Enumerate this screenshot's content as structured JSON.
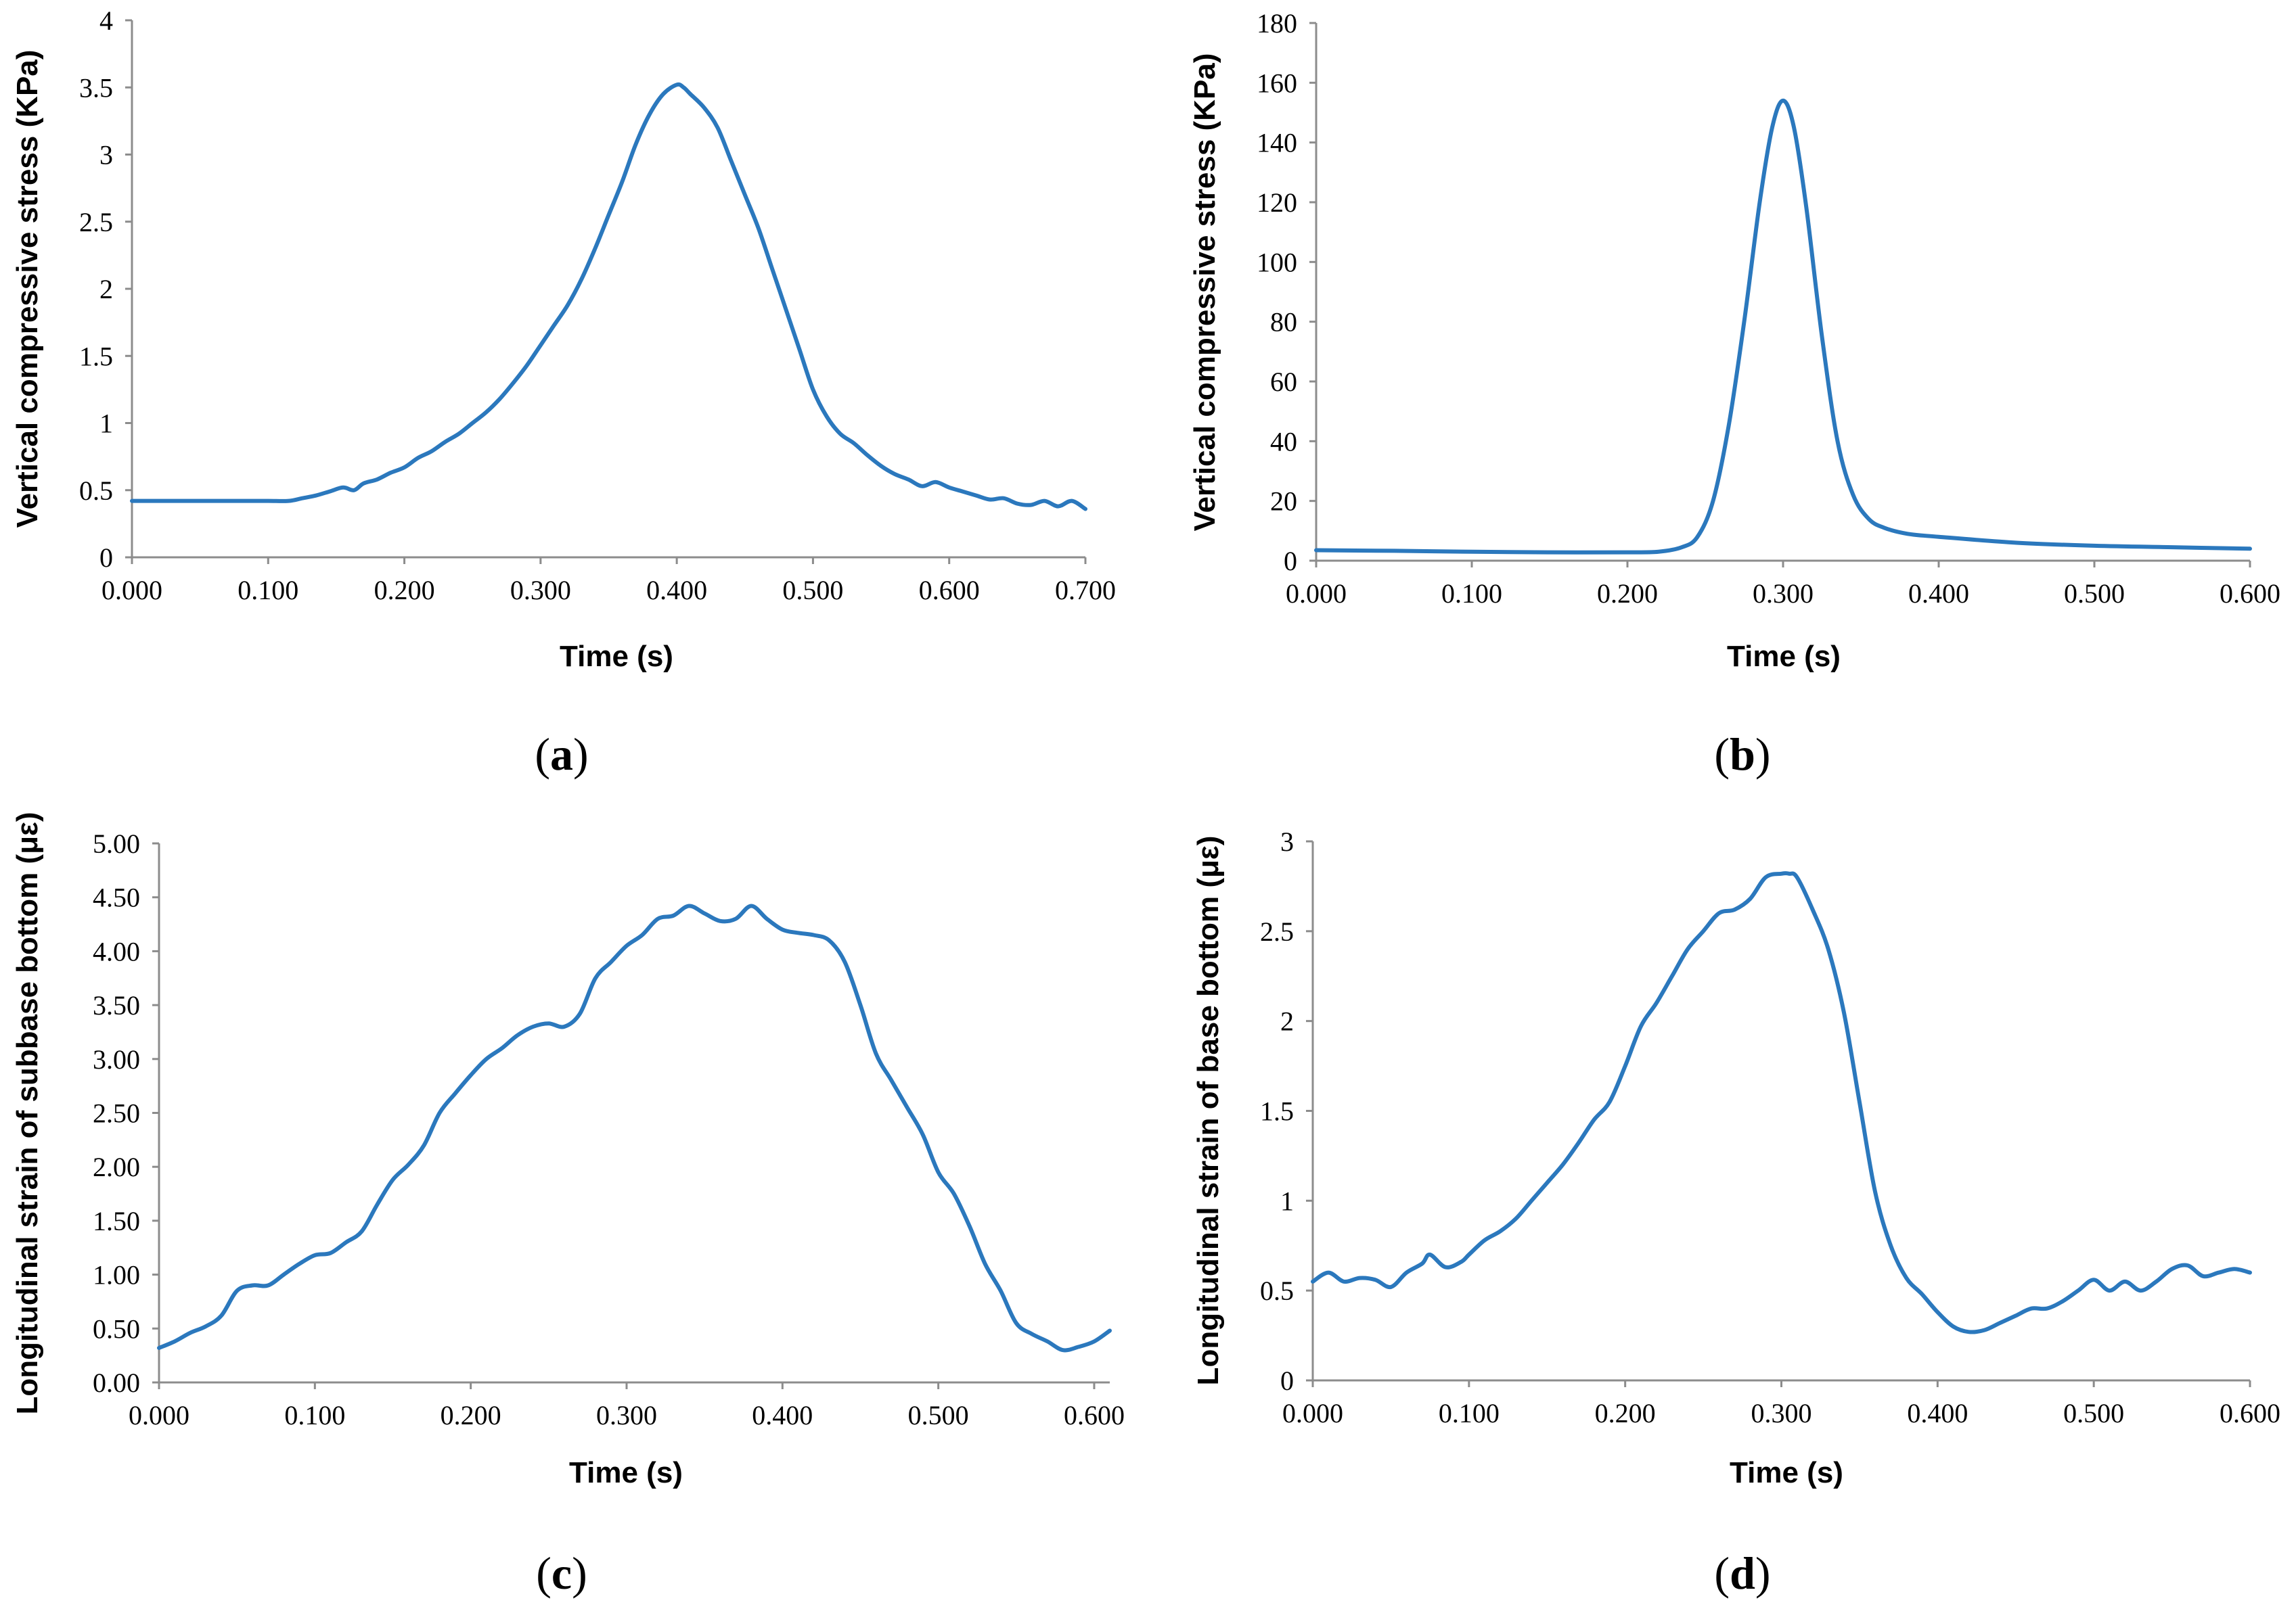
{
  "colors": {
    "series": "#2b78bd",
    "axis": "#8c8c8c",
    "text": "#000000"
  },
  "chart_data": [
    {
      "id": "a",
      "type": "line",
      "caption_letter": "a",
      "xlabel": "Time (s)",
      "ylabel": "Vertical compressive stress (KPa)",
      "xlim": [
        0,
        0.7
      ],
      "ylim": [
        0,
        4
      ],
      "x_ticks": [
        "0.000",
        "0.100",
        "0.200",
        "0.300",
        "0.400",
        "0.500",
        "0.600",
        "0.700"
      ],
      "y_ticks": [
        "0",
        "0.5",
        "1",
        "1.5",
        "2",
        "2.5",
        "3",
        "3.5",
        "4"
      ],
      "series": [
        {
          "name": "Vertical compressive stress",
          "x": [
            0,
            0.02,
            0.05,
            0.08,
            0.1,
            0.115,
            0.125,
            0.135,
            0.145,
            0.155,
            0.163,
            0.17,
            0.18,
            0.19,
            0.2,
            0.21,
            0.22,
            0.23,
            0.24,
            0.25,
            0.26,
            0.27,
            0.28,
            0.29,
            0.3,
            0.31,
            0.32,
            0.33,
            0.34,
            0.35,
            0.36,
            0.37,
            0.38,
            0.39,
            0.4,
            0.405,
            0.41,
            0.42,
            0.43,
            0.44,
            0.45,
            0.46,
            0.47,
            0.48,
            0.49,
            0.5,
            0.51,
            0.52,
            0.53,
            0.54,
            0.55,
            0.56,
            0.57,
            0.58,
            0.59,
            0.6,
            0.61,
            0.62,
            0.63,
            0.64,
            0.65,
            0.66,
            0.67,
            0.68,
            0.69,
            0.7
          ],
          "y": [
            0.42,
            0.42,
            0.42,
            0.42,
            0.42,
            0.42,
            0.44,
            0.46,
            0.49,
            0.52,
            0.5,
            0.55,
            0.58,
            0.63,
            0.67,
            0.74,
            0.79,
            0.86,
            0.92,
            1.0,
            1.08,
            1.18,
            1.3,
            1.43,
            1.58,
            1.73,
            1.88,
            2.07,
            2.3,
            2.55,
            2.8,
            3.08,
            3.3,
            3.45,
            3.52,
            3.5,
            3.45,
            3.35,
            3.2,
            2.95,
            2.7,
            2.45,
            2.15,
            1.85,
            1.55,
            1.25,
            1.05,
            0.92,
            0.85,
            0.76,
            0.68,
            0.62,
            0.58,
            0.53,
            0.56,
            0.52,
            0.49,
            0.46,
            0.43,
            0.44,
            0.4,
            0.39,
            0.42,
            0.38,
            0.42,
            0.36
          ]
        }
      ]
    },
    {
      "id": "b",
      "type": "line",
      "caption_letter": "b",
      "xlabel": "Time (s)",
      "ylabel": "Vertical compressive stress (KPa)",
      "xlim": [
        0,
        0.6
      ],
      "ylim": [
        0,
        180
      ],
      "x_ticks": [
        "0.000",
        "0.100",
        "0.200",
        "0.300",
        "0.400",
        "0.500",
        "0.600"
      ],
      "y_ticks": [
        "0",
        "20",
        "40",
        "60",
        "80",
        "100",
        "120",
        "140",
        "160",
        "180"
      ],
      "series": [
        {
          "name": "Vertical compressive stress",
          "x": [
            0,
            0.05,
            0.1,
            0.15,
            0.2,
            0.22,
            0.235,
            0.245,
            0.255,
            0.265,
            0.275,
            0.285,
            0.293,
            0.3,
            0.307,
            0.315,
            0.325,
            0.335,
            0.345,
            0.355,
            0.365,
            0.38,
            0.4,
            0.45,
            0.5,
            0.55,
            0.6
          ],
          "y": [
            3.5,
            3.3,
            3.0,
            2.8,
            2.8,
            3.0,
            4.5,
            8,
            20,
            45,
            80,
            120,
            145,
            154,
            145,
            118,
            75,
            40,
            22,
            14,
            11,
            9,
            8,
            6,
            5,
            4.5,
            4
          ]
        }
      ]
    },
    {
      "id": "c",
      "type": "line",
      "caption_letter": "c",
      "xlabel": "Time (s)",
      "ylabel": "Longitudinal strain of subbase bottom (με)",
      "xlim": [
        0,
        0.61
      ],
      "x_tick_values": [
        0,
        0.1,
        0.2,
        0.3,
        0.4,
        0.5,
        0.6
      ],
      "ylim": [
        0,
        5
      ],
      "x_ticks": [
        "0.000",
        "0.100",
        "0.200",
        "0.300",
        "0.400",
        "0.500",
        "0.600"
      ],
      "y_ticks": [
        "0.00",
        "0.50",
        "1.00",
        "1.50",
        "2.00",
        "2.50",
        "3.00",
        "3.50",
        "4.00",
        "4.50",
        "5.00"
      ],
      "series": [
        {
          "name": "Longitudinal strain of subbase bottom",
          "x": [
            0,
            0.01,
            0.02,
            0.03,
            0.04,
            0.05,
            0.06,
            0.07,
            0.08,
            0.09,
            0.1,
            0.11,
            0.12,
            0.13,
            0.14,
            0.15,
            0.16,
            0.17,
            0.18,
            0.19,
            0.2,
            0.21,
            0.22,
            0.23,
            0.24,
            0.25,
            0.26,
            0.27,
            0.28,
            0.29,
            0.3,
            0.31,
            0.32,
            0.33,
            0.34,
            0.35,
            0.36,
            0.37,
            0.38,
            0.39,
            0.4,
            0.41,
            0.42,
            0.43,
            0.44,
            0.45,
            0.46,
            0.47,
            0.48,
            0.49,
            0.5,
            0.51,
            0.52,
            0.53,
            0.54,
            0.55,
            0.56,
            0.57,
            0.58,
            0.59,
            0.6,
            0.61
          ],
          "y": [
            0.32,
            0.38,
            0.46,
            0.52,
            0.62,
            0.85,
            0.9,
            0.9,
            1.0,
            1.1,
            1.18,
            1.2,
            1.3,
            1.4,
            1.65,
            1.88,
            2.02,
            2.2,
            2.5,
            2.68,
            2.85,
            3.0,
            3.1,
            3.22,
            3.3,
            3.33,
            3.3,
            3.42,
            3.75,
            3.9,
            4.05,
            4.15,
            4.3,
            4.33,
            4.42,
            4.35,
            4.28,
            4.3,
            4.42,
            4.3,
            4.2,
            4.17,
            4.15,
            4.1,
            3.9,
            3.5,
            3.05,
            2.8,
            2.55,
            2.3,
            1.95,
            1.75,
            1.45,
            1.1,
            0.85,
            0.55,
            0.45,
            0.38,
            0.3,
            0.33,
            0.38,
            0.48
          ]
        }
      ]
    },
    {
      "id": "d",
      "type": "line",
      "caption_letter": "d",
      "xlabel": "Time (s)",
      "ylabel": "Longitudinal strain of base bottom (με)",
      "xlim": [
        0,
        0.6
      ],
      "ylim": [
        0,
        3
      ],
      "x_ticks": [
        "0.000",
        "0.100",
        "0.200",
        "0.300",
        "0.400",
        "0.500",
        "0.600"
      ],
      "y_ticks": [
        "0",
        "0.5",
        "1",
        "1.5",
        "2",
        "2.5",
        "3"
      ],
      "series": [
        {
          "name": "Longitudinal strain of base bottom",
          "x": [
            0,
            0.01,
            0.02,
            0.03,
            0.04,
            0.05,
            0.06,
            0.07,
            0.075,
            0.085,
            0.095,
            0.1,
            0.11,
            0.12,
            0.13,
            0.14,
            0.15,
            0.16,
            0.17,
            0.18,
            0.19,
            0.2,
            0.21,
            0.22,
            0.23,
            0.24,
            0.25,
            0.26,
            0.27,
            0.28,
            0.29,
            0.3,
            0.305,
            0.31,
            0.32,
            0.33,
            0.34,
            0.35,
            0.36,
            0.37,
            0.38,
            0.39,
            0.4,
            0.41,
            0.42,
            0.43,
            0.44,
            0.45,
            0.46,
            0.47,
            0.48,
            0.49,
            0.5,
            0.51,
            0.52,
            0.53,
            0.54,
            0.55,
            0.56,
            0.57,
            0.58,
            0.59,
            0.6
          ],
          "y": [
            0.55,
            0.6,
            0.55,
            0.57,
            0.56,
            0.52,
            0.6,
            0.65,
            0.7,
            0.63,
            0.66,
            0.7,
            0.78,
            0.83,
            0.9,
            1.0,
            1.1,
            1.2,
            1.32,
            1.45,
            1.55,
            1.75,
            1.97,
            2.1,
            2.25,
            2.4,
            2.5,
            2.6,
            2.62,
            2.68,
            2.8,
            2.82,
            2.82,
            2.8,
            2.62,
            2.4,
            2.05,
            1.55,
            1.05,
            0.75,
            0.57,
            0.48,
            0.38,
            0.3,
            0.27,
            0.28,
            0.32,
            0.36,
            0.4,
            0.4,
            0.44,
            0.5,
            0.56,
            0.5,
            0.55,
            0.5,
            0.55,
            0.62,
            0.64,
            0.58,
            0.6,
            0.62,
            0.6
          ]
        }
      ]
    }
  ]
}
